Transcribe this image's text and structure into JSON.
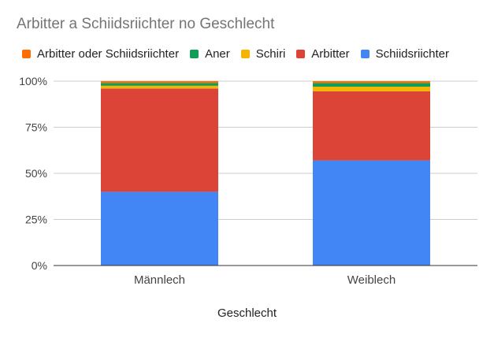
{
  "chart_data": {
    "type": "bar",
    "stacked": "percent",
    "title": "Arbitter a Schiidsriichter no Geschlecht",
    "xlabel": "Geschlecht",
    "ylabel": "",
    "ylim": [
      0,
      100
    ],
    "yticks": [
      "0%",
      "25%",
      "50%",
      "75%",
      "100%"
    ],
    "categories": [
      "Männlech",
      "Weiblech"
    ],
    "series": [
      {
        "name": "Schiidsriichter",
        "color": "#4285f4",
        "values": [
          40,
          57
        ]
      },
      {
        "name": "Arbitter",
        "color": "#db4437",
        "values": [
          56,
          37.5
        ]
      },
      {
        "name": "Schiri",
        "color": "#f4b400",
        "values": [
          1.5,
          2.5
        ]
      },
      {
        "name": "Aner",
        "color": "#0f9d58",
        "values": [
          1.5,
          2
        ]
      },
      {
        "name": "Arbitter oder Schiidsriichter",
        "color": "#ff6d01",
        "values": [
          1,
          1
        ]
      }
    ],
    "legend_order": [
      "Arbitter oder Schiidsriichter",
      "Aner",
      "Schiri",
      "Arbitter",
      "Schiidsriichter"
    ]
  }
}
